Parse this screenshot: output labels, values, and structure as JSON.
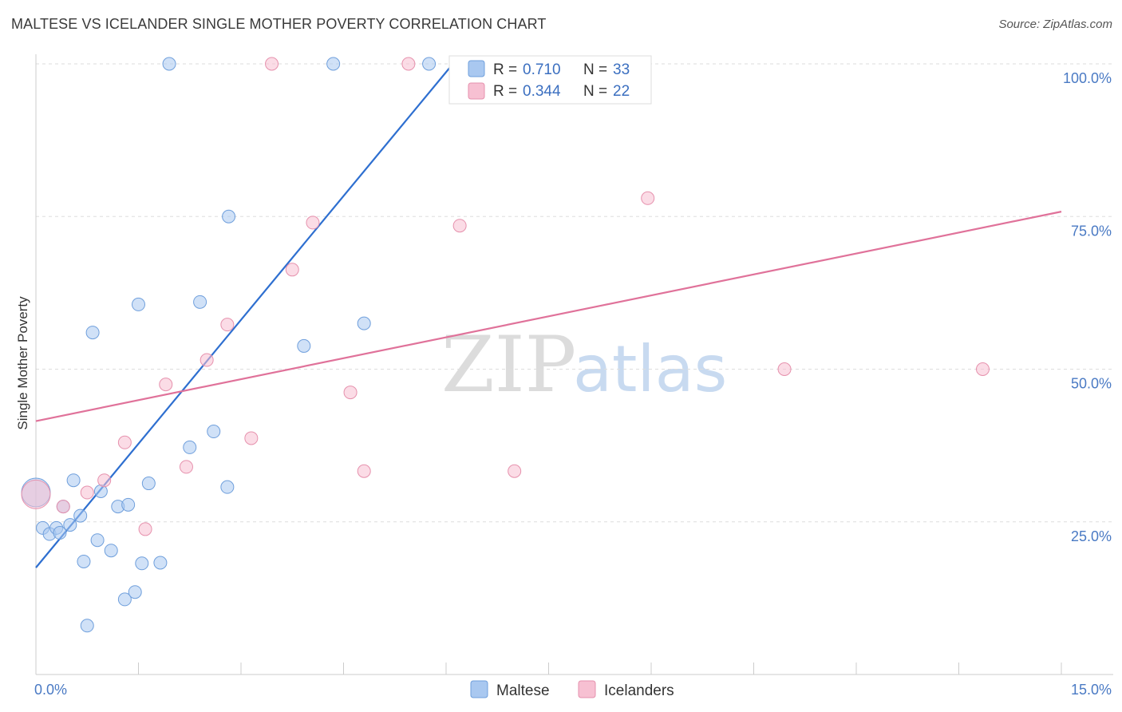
{
  "title": "MALTESE VS ICELANDER SINGLE MOTHER POVERTY CORRELATION CHART",
  "source": "Source: ZipAtlas.com",
  "chart_data": {
    "type": "scatter",
    "ylabel": "Single Mother Poverty",
    "xlim": [
      0,
      15
    ],
    "ylim": [
      0,
      100
    ],
    "x_tick_labels": [
      {
        "value": 0,
        "label": "0.0%"
      },
      {
        "value": 15,
        "label": "15.0%"
      }
    ],
    "y_tick_labels": [
      {
        "value": 25,
        "label": "25.0%"
      },
      {
        "value": 50,
        "label": "50.0%"
      },
      {
        "value": 75,
        "label": "75.0%"
      },
      {
        "value": 100,
        "label": "100.0%"
      }
    ],
    "grid": true,
    "legend_position": "top-center",
    "watermark": {
      "zip": "ZIP",
      "atlas": "atlas"
    },
    "series": [
      {
        "name": "Maltese",
        "color": "#a9c8f0",
        "stroke": "#6f9fdc",
        "line_color": "#2e6fd0",
        "R": "0.710",
        "N": "33",
        "trend": {
          "x0": 0,
          "y0": 17.5,
          "x1": 6.1,
          "y1": 100
        },
        "points": [
          [
            0.0,
            29.8
          ],
          [
            0.1,
            24.0
          ],
          [
            0.2,
            23.0
          ],
          [
            0.3,
            24.0
          ],
          [
            0.35,
            23.2
          ],
          [
            0.4,
            27.5
          ],
          [
            0.5,
            24.5
          ],
          [
            0.55,
            31.8
          ],
          [
            0.65,
            26.0
          ],
          [
            0.7,
            18.5
          ],
          [
            0.75,
            8.0
          ],
          [
            0.9,
            22.0
          ],
          [
            0.95,
            30.0
          ],
          [
            0.83,
            56.0
          ],
          [
            1.1,
            20.3
          ],
          [
            1.2,
            27.5
          ],
          [
            1.3,
            12.3
          ],
          [
            1.35,
            27.8
          ],
          [
            1.45,
            13.5
          ],
          [
            1.5,
            60.6
          ],
          [
            1.55,
            18.2
          ],
          [
            1.65,
            31.3
          ],
          [
            1.82,
            18.3
          ],
          [
            1.95,
            100.0
          ],
          [
            2.25,
            37.2
          ],
          [
            2.4,
            61.0
          ],
          [
            2.6,
            39.8
          ],
          [
            2.8,
            30.7
          ],
          [
            2.82,
            75.0
          ],
          [
            3.92,
            53.8
          ],
          [
            4.35,
            100.0
          ],
          [
            4.8,
            57.5
          ],
          [
            5.75,
            100.0
          ]
        ]
      },
      {
        "name": "Icelanders",
        "color": "#f7c0d2",
        "stroke": "#e691ad",
        "line_color": "#e0729a",
        "R": "0.344",
        "N": "22",
        "trend": {
          "x0": 0,
          "y0": 41.5,
          "x1": 15,
          "y1": 75.8
        },
        "points": [
          [
            0.0,
            29.5
          ],
          [
            0.4,
            27.5
          ],
          [
            0.75,
            29.8
          ],
          [
            1.0,
            31.8
          ],
          [
            1.3,
            38.0
          ],
          [
            1.6,
            23.8
          ],
          [
            1.9,
            47.5
          ],
          [
            2.2,
            34.0
          ],
          [
            2.5,
            51.5
          ],
          [
            2.8,
            57.3
          ],
          [
            3.15,
            38.7
          ],
          [
            3.45,
            100.0
          ],
          [
            3.75,
            66.3
          ],
          [
            4.05,
            74.0
          ],
          [
            4.6,
            46.2
          ],
          [
            4.8,
            33.3
          ],
          [
            5.45,
            100.0
          ],
          [
            6.2,
            73.5
          ],
          [
            7.0,
            33.3
          ],
          [
            8.95,
            78.0
          ],
          [
            10.95,
            50.0
          ],
          [
            13.85,
            50.0
          ]
        ]
      }
    ]
  },
  "legend": {
    "r_label": "R =",
    "n_label": "N ="
  }
}
